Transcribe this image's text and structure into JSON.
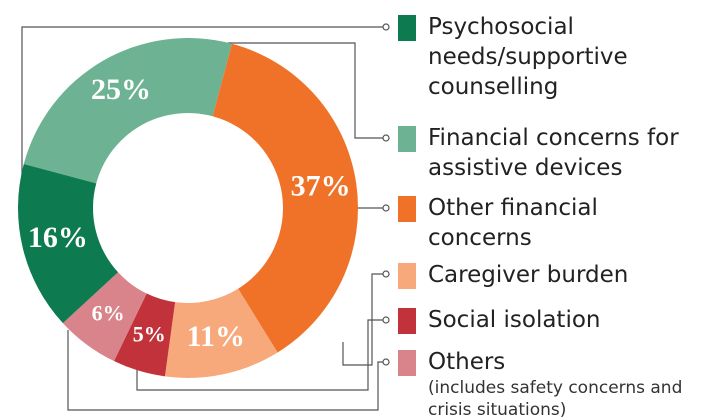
{
  "chart_data": {
    "type": "donut",
    "series": [
      {
        "name": "Financial concerns for assistive devices",
        "color": "#6db393"
      },
      {
        "name": "Other financial concerns",
        "color": "#f07228"
      },
      {
        "name": "Caregiver burden",
        "color": "#f7a97c"
      },
      {
        "name": "Social isolation",
        "color": "#c1323a"
      },
      {
        "name": "Others",
        "color": "#d9838a",
        "note": "(includes safety concerns and crisis situations)"
      },
      {
        "name": "Psychosocial needs/supportive counselling",
        "color": "#0e7a4f"
      }
    ],
    "values": [
      25,
      37,
      11,
      5,
      6,
      16
    ],
    "value_labels": [
      "25%",
      "37%",
      "11%",
      "5%",
      "6%",
      "16%"
    ]
  }
}
